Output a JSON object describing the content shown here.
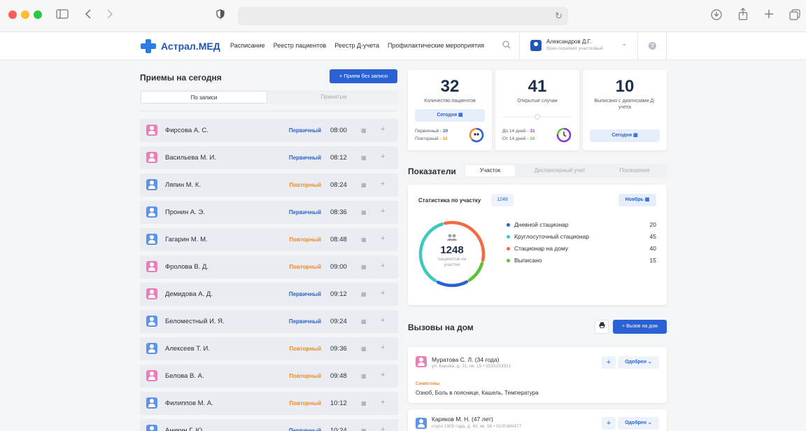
{
  "browser": {
    "colors": {
      "close": "#ff5f57",
      "minimize": "#febc2e",
      "zoom": "#28c840"
    },
    "icons": [
      "sidebar-icon",
      "back-icon",
      "forward-icon",
      "shield-icon",
      "reload-icon",
      "download-icon",
      "share-icon",
      "new-tab-icon",
      "tabs-icon"
    ]
  },
  "header": {
    "logo": "Астрал.МЕД",
    "nav": [
      "Расписание",
      "Реестр пациентов",
      "Реестр Д-учета",
      "Профилактические мероприятия"
    ],
    "user": {
      "name": "Александров Д.Г.",
      "role": "Врач-терапевт участковый"
    },
    "help": "?"
  },
  "appointments": {
    "title": "Приемы на сегодня",
    "add_button": "+ Прием без записи",
    "tabs": [
      "По записи",
      "Принятые"
    ],
    "rows": [
      {
        "name": "Фирсова А. С.",
        "gender": "f",
        "type": "Первичный",
        "kind": "prim",
        "time": "08:00"
      },
      {
        "name": "Васильева М. И.",
        "gender": "f",
        "type": "Первичный",
        "kind": "prim",
        "time": "08:12"
      },
      {
        "name": "Ляпин М. К.",
        "gender": "m",
        "type": "Повторный",
        "kind": "rep",
        "time": "08:24"
      },
      {
        "name": "Пронин А. Э.",
        "gender": "m",
        "type": "Первичный",
        "kind": "prim",
        "time": "08:36"
      },
      {
        "name": "Гагарин М. М.",
        "gender": "m",
        "type": "Повторный",
        "kind": "rep",
        "time": "08:48"
      },
      {
        "name": "Фролова В. Д.",
        "gender": "f",
        "type": "Повторный",
        "kind": "rep",
        "time": "09:00"
      },
      {
        "name": "Демидова А. Д.",
        "gender": "f",
        "type": "Первичный",
        "kind": "prim",
        "time": "09:12"
      },
      {
        "name": "Беломестный И. Я.",
        "gender": "m",
        "type": "Первичный",
        "kind": "prim",
        "time": "09:24"
      },
      {
        "name": "Алексеев Т. И.",
        "gender": "m",
        "type": "Повторный",
        "kind": "rep",
        "time": "09:36"
      },
      {
        "name": "Белова В. А.",
        "gender": "f",
        "type": "Повторный",
        "kind": "rep",
        "time": "09:48"
      },
      {
        "name": "Филиппов М. А.",
        "gender": "m",
        "type": "Повторный",
        "kind": "rep",
        "time": "10:12"
      },
      {
        "name": "Аникин Г. Ю.",
        "gender": "m",
        "type": "Первичный",
        "kind": "prim",
        "time": "10:24"
      }
    ]
  },
  "stats": {
    "patients": {
      "value": "32",
      "label": "Количество пациентов",
      "button": "Сегодня",
      "primary_label": "Первичный - ",
      "primary_value": "20",
      "repeat_label": "Повторный - ",
      "repeat_value": "12"
    },
    "cases": {
      "value": "41",
      "label": "Открытые случаи",
      "lt14_label": "До 14 дней - ",
      "lt14_value": "31",
      "gt14_label": "От 14 дней - ",
      "gt14_value": "10"
    },
    "discharged": {
      "value": "10",
      "label": "Выписано с диагнозами Д-учета",
      "button": "Сегодня"
    }
  },
  "indicators": {
    "title": "Показатели",
    "tabs": [
      "Участок",
      "Диспансерный учет",
      "Посещения"
    ],
    "stat_title": "Статистика по участку",
    "badge": "1248",
    "month": "Ноябрь",
    "total": "1248",
    "total_caption": "пациентов на участке",
    "legend": [
      {
        "label": "Дневной стационар",
        "value": "20",
        "color": "#2a62d6"
      },
      {
        "label": "Круглосуточный стационар",
        "value": "45",
        "color": "#3cc9c0"
      },
      {
        "label": "Стационар на дому",
        "value": "40",
        "color": "#f26b45"
      },
      {
        "label": "Выписано",
        "value": "15",
        "color": "#5bc236"
      }
    ]
  },
  "calls": {
    "title": "Вызовы на дом",
    "add_button": "+ Вызов на дом",
    "items": [
      {
        "name": "Муратова С. Л. (34 года)",
        "gender": "f",
        "address": "ул. Кирова, д. 31, кв. 15 • 9533153921",
        "status": "Одобрен",
        "symptoms_label": "Симптомы",
        "symptoms": "Озноб, Боль в пояснице, Кашель, Температура"
      },
      {
        "name": "Каряков М. Н. (47 лет)",
        "gender": "m",
        "address": "спуск 1905 года, д. 40, кв. 56 • 9100380477",
        "status": "Одобрен"
      }
    ]
  },
  "colors": {
    "accent": "#2a62d6",
    "primary_type": "#2a62d6",
    "repeat_type": "#f08a2b",
    "female_avatar": "#ea7fb8",
    "male_avatar": "#5f93e8"
  }
}
